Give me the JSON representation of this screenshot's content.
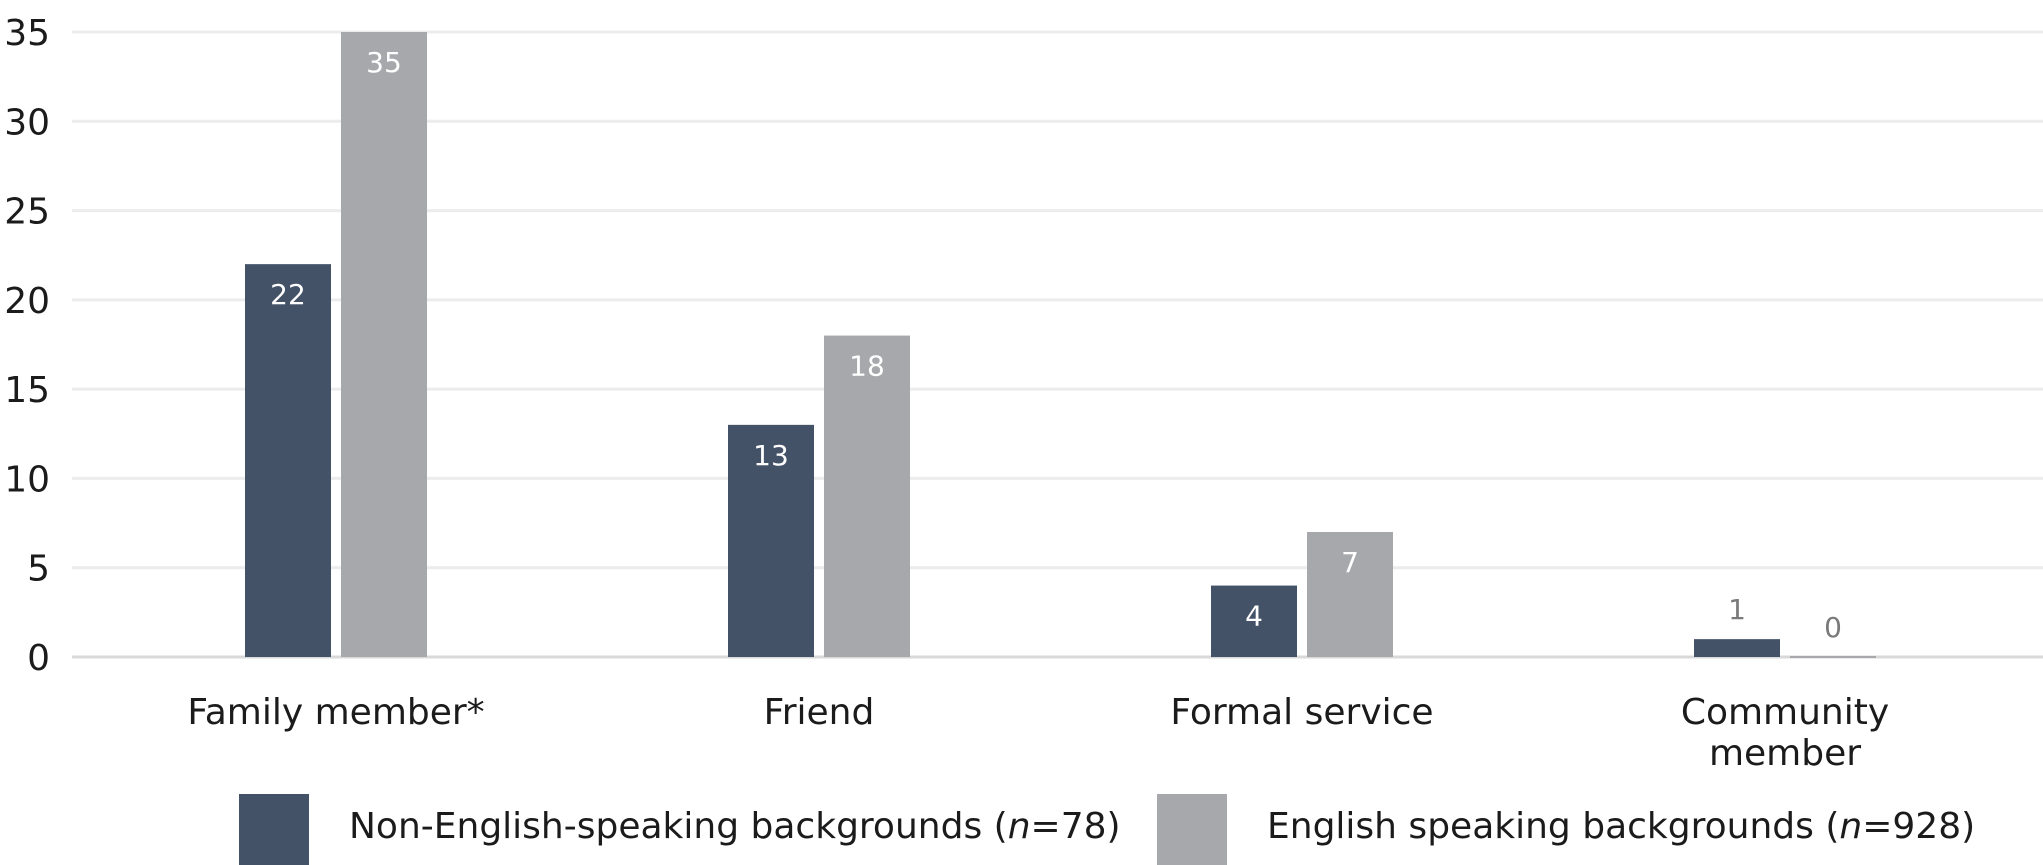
{
  "chart_data": {
    "type": "bar",
    "categories": [
      [
        "Family member*"
      ],
      [
        "Friend"
      ],
      [
        "Formal service"
      ],
      [
        "Community",
        "member"
      ]
    ],
    "series": [
      {
        "name": "Non-English-speaking backgrounds",
        "n_label": "n",
        "n_value": "=78",
        "color": "#445268",
        "label_color": "#ffffff",
        "values": [
          22,
          13,
          4,
          1
        ]
      },
      {
        "name": "English speaking backgrounds",
        "n_label": "n",
        "n_value": "=928",
        "color": "#a7a8ac",
        "label_color": "#ffffff",
        "values": [
          35,
          18,
          7,
          0
        ]
      }
    ],
    "ylim": [
      0,
      35
    ],
    "yticks": [
      0,
      5,
      10,
      15,
      20,
      25,
      30,
      35
    ],
    "grid": true,
    "outside_label_color": "#7a7a7a",
    "legend_position": "bottom"
  }
}
